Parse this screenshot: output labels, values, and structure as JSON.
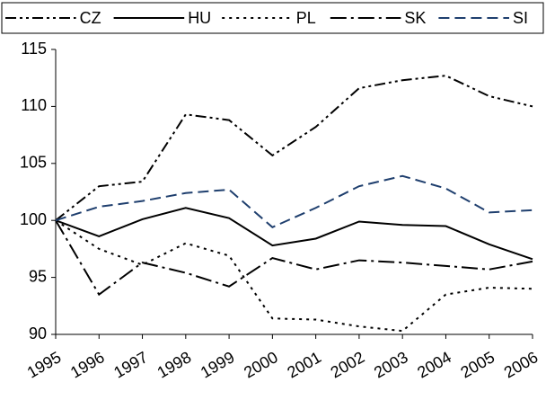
{
  "chart_data": {
    "type": "line",
    "categories": [
      "1995",
      "1996",
      "1997",
      "1998",
      "1999",
      "2000",
      "2001",
      "2002",
      "2003",
      "2004",
      "2005",
      "2006"
    ],
    "series": [
      {
        "name": "CZ",
        "color": "#000000",
        "dash": "12,4,3,4,3,4",
        "values": [
          100,
          103,
          103.4,
          109.3,
          108.8,
          105.7,
          108.2,
          111.6,
          112.3,
          112.7,
          110.9,
          110
        ]
      },
      {
        "name": "HU",
        "color": "#000000",
        "dash": "none",
        "values": [
          100,
          98.6,
          100.1,
          101.1,
          100.2,
          97.8,
          98.4,
          99.9,
          99.6,
          99.5,
          97.9,
          96.6
        ]
      },
      {
        "name": "PL",
        "color": "#000000",
        "dash": "3,5",
        "values": [
          100,
          97.5,
          96.1,
          98,
          96.9,
          91.4,
          91.3,
          90.7,
          90.3,
          93.5,
          94.1,
          94
        ]
      },
      {
        "name": "SK",
        "color": "#000000",
        "dash": "18,5,3,5",
        "values": [
          100,
          93.5,
          96.3,
          95.4,
          94.2,
          96.7,
          95.7,
          96.5,
          96.3,
          96,
          95.7,
          96.4
        ]
      },
      {
        "name": "SI",
        "color": "#1f3f6e",
        "dash": "12,6",
        "values": [
          100,
          101.2,
          101.7,
          102.4,
          102.7,
          99.4,
          101.1,
          103,
          103.9,
          102.8,
          100.7,
          100.9
        ]
      }
    ],
    "ylim": [
      90,
      115
    ],
    "yticks": [
      90,
      95,
      100,
      105,
      110,
      115
    ],
    "grid": false,
    "legend": "top"
  }
}
